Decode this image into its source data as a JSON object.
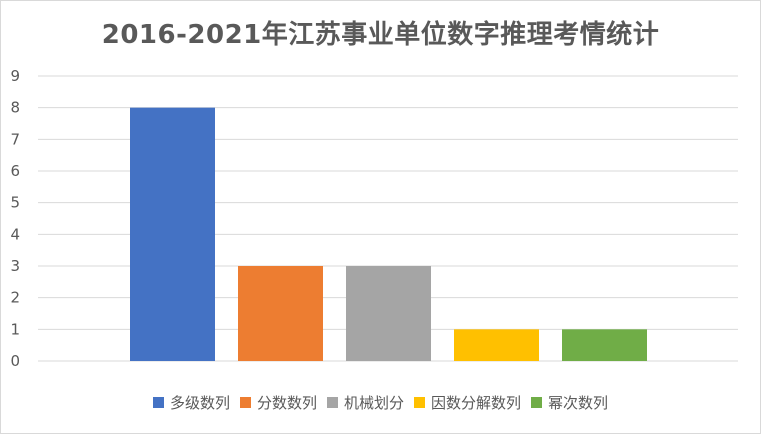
{
  "chart_data": {
    "type": "bar",
    "title": "2016-2021年江苏事业单位数字推理考情统计",
    "xlabel": "",
    "ylabel": "",
    "ylim": [
      0,
      9
    ],
    "yticks": [
      0,
      1,
      2,
      3,
      4,
      5,
      6,
      7,
      8,
      9
    ],
    "grid": true,
    "legend_position": "bottom",
    "categories": [
      "多级数列",
      "分数数列",
      "机械划分",
      "因数分解数列",
      "幂次数列"
    ],
    "values": [
      8,
      3,
      3,
      1,
      1
    ],
    "colors": [
      "#4472C4",
      "#ED7D31",
      "#A5A5A5",
      "#FFC000",
      "#70AD47"
    ]
  }
}
